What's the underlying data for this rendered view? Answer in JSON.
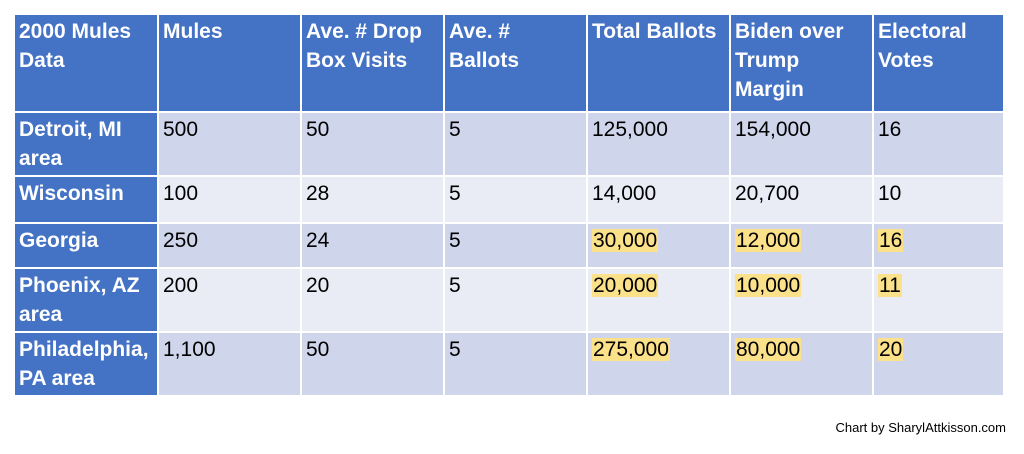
{
  "chart_data": {
    "type": "table",
    "columns": [
      "2000 Mules Data",
      "Mules",
      "Ave. # Drop Box Visits",
      "Ave. # Ballots",
      "Total Ballots",
      "Biden over Trump Margin",
      "Electoral Votes"
    ],
    "rows": [
      {
        "cells": [
          "Detroit, MI area",
          "500",
          "50",
          "5",
          "125,000",
          "154,000",
          "16"
        ],
        "highlighted": [
          false,
          false,
          false,
          false,
          false,
          false,
          false
        ]
      },
      {
        "cells": [
          "Wisconsin",
          "100",
          "28",
          "5",
          "14,000",
          "20,700",
          "10"
        ],
        "highlighted": [
          false,
          false,
          false,
          false,
          false,
          false,
          false
        ]
      },
      {
        "cells": [
          "Georgia",
          "250",
          "24",
          "5",
          "30,000",
          "12,000",
          "16"
        ],
        "highlighted": [
          false,
          false,
          false,
          false,
          true,
          true,
          true
        ]
      },
      {
        "cells": [
          "Phoenix, AZ area",
          "200",
          "20",
          "5",
          "20,000",
          "10,000",
          "11"
        ],
        "highlighted": [
          false,
          false,
          false,
          false,
          true,
          true,
          true
        ]
      },
      {
        "cells": [
          "Philadelphia, PA area",
          "1,100",
          "50",
          "5",
          "275,000",
          "80,000",
          "20"
        ],
        "highlighted": [
          false,
          false,
          false,
          false,
          true,
          true,
          true
        ]
      }
    ],
    "colors": {
      "header": "#4472c4",
      "row_dark": "#cfd5ea",
      "row_light": "#e9ebf5",
      "highlight": "#fbe18a"
    }
  },
  "footer": {
    "credit": "Chart by SharylAttkisson.com"
  }
}
